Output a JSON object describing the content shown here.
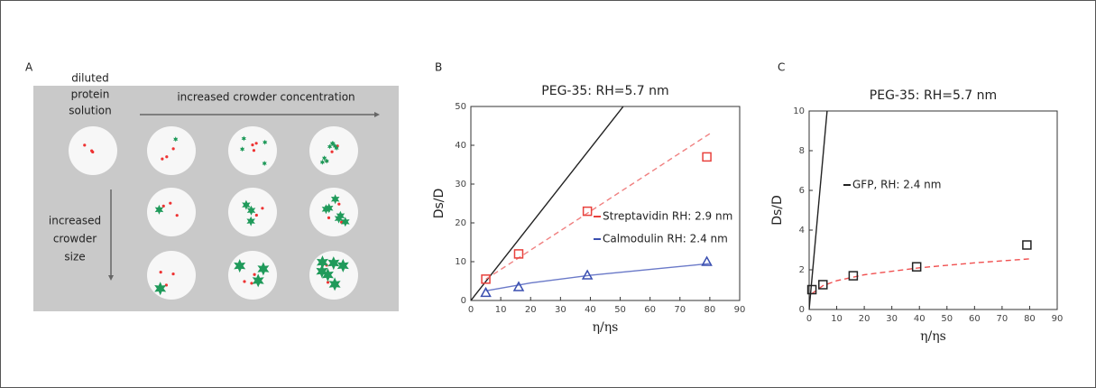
{
  "panel_labels": [
    "A",
    "B",
    "C"
  ],
  "diagram": {
    "dilute_label": [
      "diluted",
      "protein",
      "solution"
    ],
    "concentration_label": "increased crowder concentration",
    "size_label": [
      "increased",
      "crowder",
      "size"
    ]
  },
  "chart_data": [
    {
      "type": "scatter",
      "title": "PEG-35: RH=5.7 nm",
      "x_label": "η/ηs",
      "y_label": "Ds/D",
      "xlim": [
        0,
        90
      ],
      "xticks": [
        0,
        10,
        20,
        30,
        40,
        50,
        60,
        70,
        80,
        90
      ],
      "ylim": [
        0,
        50
      ],
      "yticks": [
        0,
        10,
        20,
        30,
        40,
        50
      ],
      "series": [
        {
          "name": "Streptavidin RH: 2.9 nm",
          "color": "#e8413c",
          "marker": "square",
          "x": [
            5,
            16,
            39,
            79
          ],
          "values": [
            5.5,
            12,
            23,
            37
          ]
        },
        {
          "name": "Calmodulin RH: 2.4 nm",
          "color": "#3a4fb0",
          "marker": "triangle",
          "x": [
            5,
            16,
            39,
            79
          ],
          "values": [
            2,
            3.5,
            6.5,
            10
          ]
        }
      ],
      "fits": [
        {
          "color": "#222222",
          "dashed": false,
          "x": [
            0,
            51
          ],
          "values": [
            0,
            50
          ]
        },
        {
          "color": "#f08080",
          "dashed": true,
          "x": [
            5,
            80
          ],
          "values": [
            5.5,
            43
          ]
        },
        {
          "color": "#6a79c8",
          "dashed": false,
          "x": [
            5,
            20,
            40,
            60,
            80
          ],
          "values": [
            2.5,
            4.5,
            6.5,
            8,
            9.5
          ]
        }
      ]
    },
    {
      "type": "scatter",
      "title": "PEG-35: RH=5.7 nm",
      "x_label": "η/ηs",
      "y_label": "Ds/D",
      "xlim": [
        0,
        90
      ],
      "xticks": [
        0,
        10,
        20,
        30,
        40,
        50,
        60,
        70,
        80,
        90
      ],
      "ylim": [
        0,
        10
      ],
      "yticks": [
        0,
        2,
        4,
        6,
        8,
        10
      ],
      "series": [
        {
          "name": "GFP, RH: 2.4 nm",
          "color": "#222222",
          "marker": "square",
          "x": [
            1,
            5,
            16,
            39,
            79
          ],
          "values": [
            1.0,
            1.25,
            1.7,
            2.15,
            3.25
          ]
        }
      ],
      "fits": [
        {
          "color": "#222222",
          "dashed": false,
          "x": [
            0,
            6.5
          ],
          "values": [
            0,
            10
          ]
        },
        {
          "color": "#f05050",
          "dashed": true,
          "x": [
            1,
            5,
            10,
            20,
            40,
            60,
            80
          ],
          "values": [
            0.8,
            1.2,
            1.45,
            1.75,
            2.1,
            2.35,
            2.55
          ]
        }
      ]
    }
  ]
}
